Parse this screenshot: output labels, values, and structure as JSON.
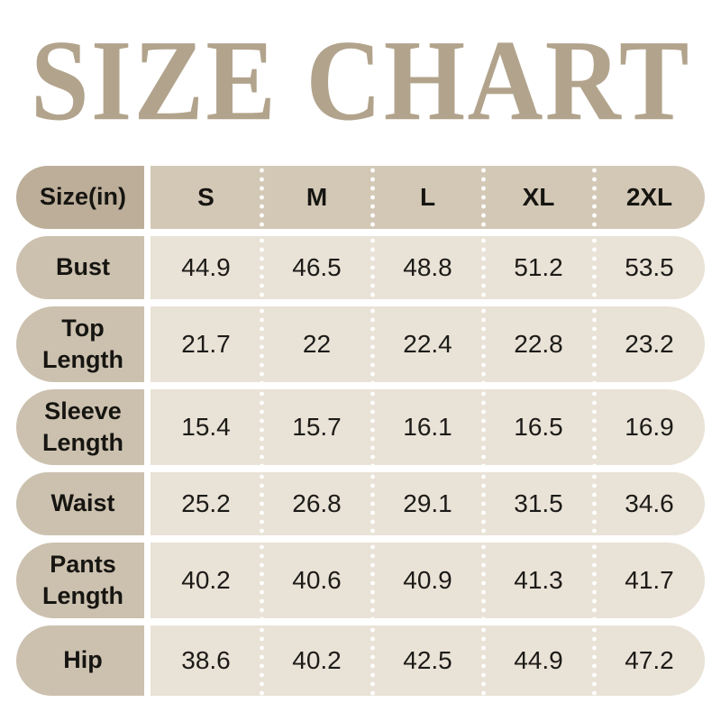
{
  "title": "SIZE CHART",
  "colors": {
    "title_text": "#b2a38c",
    "header_label_bg": "#bcae99",
    "header_strip_bg": "#d3c8b6",
    "row_label_bg": "#ccc1af",
    "data_strip_bg": "#e9e2d6",
    "text": "#1c1b18",
    "separator_dots": "#ffffff",
    "page_bg": "#ffffff"
  },
  "chart_data": {
    "type": "table",
    "title": "SIZE CHART",
    "unit_label": "Size(in)",
    "columns": [
      "S",
      "M",
      "L",
      "XL",
      "2XL"
    ],
    "rows": [
      {
        "label": "Bust",
        "values": [
          "44.9",
          "46.5",
          "48.8",
          "51.2",
          "53.5"
        ]
      },
      {
        "label": "Top Length",
        "values": [
          "21.7",
          "22",
          "22.4",
          "22.8",
          "23.2"
        ]
      },
      {
        "label": "Sleeve Length",
        "values": [
          "15.4",
          "15.7",
          "16.1",
          "16.5",
          "16.9"
        ]
      },
      {
        "label": "Waist",
        "values": [
          "25.2",
          "26.8",
          "29.1",
          "31.5",
          "34.6"
        ]
      },
      {
        "label": "Pants Length",
        "values": [
          "40.2",
          "40.6",
          "40.9",
          "41.3",
          "41.7"
        ]
      },
      {
        "label": "Hip",
        "values": [
          "38.6",
          "40.2",
          "42.5",
          "44.9",
          "47.2"
        ]
      }
    ]
  }
}
